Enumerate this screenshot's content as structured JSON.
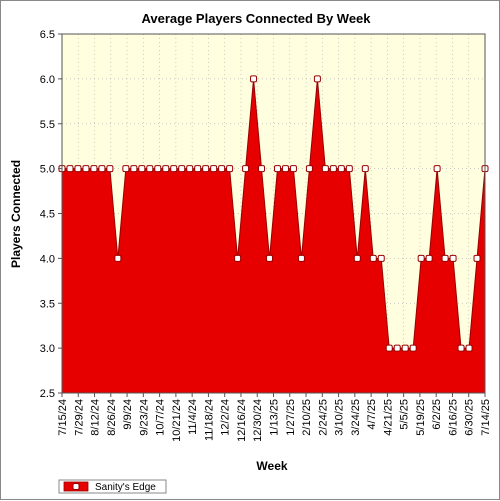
{
  "chart_data": {
    "type": "area",
    "title": "Average Players Connected By Week",
    "xlabel": "Week",
    "ylabel": "Players Connected",
    "ylim": [
      2.5,
      6.5
    ],
    "yticks": [
      "2.5",
      "3.0",
      "3.5",
      "4.0",
      "4.5",
      "5.0",
      "5.5",
      "6.0",
      "6.5"
    ],
    "x_tick_labels": [
      "7/15/24",
      "7/29/24",
      "8/12/24",
      "8/26/24",
      "9/9/24",
      "9/23/24",
      "10/7/24",
      "10/21/24",
      "11/4/24",
      "11/18/24",
      "12/2/24",
      "12/16/24",
      "12/30/24",
      "1/13/25",
      "1/27/25",
      "2/10/25",
      "2/24/25",
      "3/10/25",
      "3/24/25",
      "4/7/25",
      "4/21/25",
      "5/5/25",
      "5/19/25",
      "6/2/25",
      "6/16/25",
      "6/30/25",
      "7/14/25"
    ],
    "grid": true,
    "legend_position": "bottom-left",
    "colors": {
      "fill": "#e60000",
      "line": "#990000",
      "marker_fill": "#ffffff",
      "plot_bg": "#ffffe0"
    },
    "series": [
      {
        "name": "Sanity's Edge",
        "values": [
          5.0,
          5.0,
          5.0,
          5.0,
          5.0,
          5.0,
          5.0,
          4.0,
          5.0,
          5.0,
          5.0,
          5.0,
          5.0,
          5.0,
          5.0,
          5.0,
          5.0,
          5.0,
          5.0,
          5.0,
          5.0,
          5.0,
          4.0,
          5.0,
          6.0,
          5.0,
          4.0,
          5.0,
          5.0,
          5.0,
          4.0,
          5.0,
          6.0,
          5.0,
          5.0,
          5.0,
          5.0,
          4.0,
          5.0,
          4.0,
          4.0,
          3.0,
          3.0,
          3.0,
          3.0,
          4.0,
          4.0,
          5.0,
          4.0,
          4.0,
          3.0,
          3.0,
          4.0,
          5.0
        ]
      }
    ]
  }
}
